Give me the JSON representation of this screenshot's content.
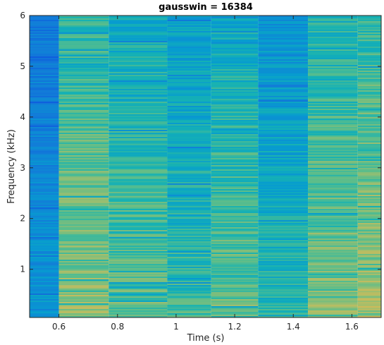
{
  "chart_data": {
    "type": "heatmap",
    "title": "gausswin = 16384",
    "xlabel": "Time (s)",
    "ylabel": "Frequency (kHz)",
    "xlim": [
      0.5,
      1.7
    ],
    "ylim": [
      0.05,
      6.0
    ],
    "x_ticks": [
      "0.6",
      "0.8",
      "1",
      "1.2",
      "1.4",
      "1.6"
    ],
    "y_ticks": [
      "1",
      "2",
      "3",
      "4",
      "5",
      "6"
    ],
    "colormap": "parula",
    "time_frames": [
      {
        "start": 0.5,
        "end": 0.6,
        "level": 0.42
      },
      {
        "start": 0.6,
        "end": 0.77,
        "level": 0.72
      },
      {
        "start": 0.77,
        "end": 0.97,
        "level": 0.66
      },
      {
        "start": 0.97,
        "end": 1.12,
        "level": 0.6
      },
      {
        "start": 1.12,
        "end": 1.28,
        "level": 0.66
      },
      {
        "start": 1.28,
        "end": 1.45,
        "level": 0.56
      },
      {
        "start": 1.45,
        "end": 1.62,
        "level": 0.7
      },
      {
        "start": 1.62,
        "end": 1.7,
        "level": 0.74
      }
    ]
  }
}
